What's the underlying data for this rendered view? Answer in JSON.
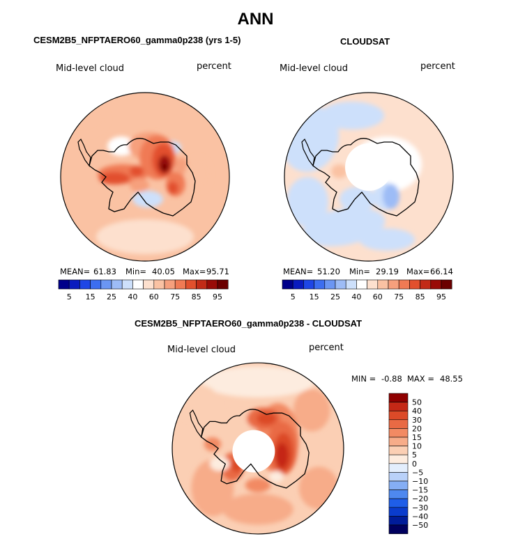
{
  "title": "ANN",
  "colors": {
    "abs_scale": [
      "#00008a",
      "#0a1bbf",
      "#1e46e6",
      "#3c6ef0",
      "#6b96f3",
      "#9dbcf6",
      "#cde0fb",
      "#ffffff",
      "#fde0ce",
      "#fac2a3",
      "#f6a07d",
      "#f07a54",
      "#e2502d",
      "#c22b17",
      "#990b07",
      "#6b0000"
    ],
    "diff_scale": [
      "#00005e",
      "#001c99",
      "#0a3ccd",
      "#1f5ee8",
      "#4e88ef",
      "#85aef4",
      "#b9d1f9",
      "#e3eefd",
      "#fdecdf",
      "#fbcfb4",
      "#f7ac89",
      "#f28a63",
      "#e96a44",
      "#dc4a28",
      "#c52816",
      "#8f0000"
    ]
  },
  "chart_data": [
    {
      "type": "heatmap",
      "projection": "south-polar-stereographic",
      "panel_title": "CESM2B5_NFPTAERO60_gamma0p238 (yrs 1-5)",
      "variable": "Mid-level cloud",
      "units": "percent",
      "stats": {
        "mean_label": "MEAN=",
        "mean": "61.83",
        "min_label": "Min=",
        "min": "40.05",
        "max_label": "Max=",
        "max": "95.71"
      },
      "colorbar": {
        "orientation": "horizontal",
        "levels": [
          5,
          10,
          15,
          20,
          25,
          30,
          40,
          50,
          60,
          65,
          70,
          75,
          80,
          85,
          90,
          95
        ],
        "labels": [
          "5",
          "15",
          "25",
          "40",
          "60",
          "75",
          "85",
          "95"
        ]
      }
    },
    {
      "type": "heatmap",
      "projection": "south-polar-stereographic",
      "panel_title": "CLOUDSAT",
      "variable": "Mid-level cloud",
      "units": "percent",
      "stats": {
        "mean_label": "MEAN=",
        "mean": "51.20",
        "min_label": "Min=",
        "min": "29.19",
        "max_label": "Max=",
        "max": "66.14"
      },
      "colorbar": {
        "orientation": "horizontal",
        "levels": [
          5,
          10,
          15,
          20,
          25,
          30,
          40,
          50,
          60,
          65,
          70,
          75,
          80,
          85,
          90,
          95
        ],
        "labels": [
          "5",
          "15",
          "25",
          "40",
          "60",
          "75",
          "85",
          "95"
        ]
      }
    },
    {
      "type": "heatmap",
      "projection": "south-polar-stereographic",
      "panel_title": "CESM2B5_NFPTAERO60_gamma0p238 - CLOUDSAT",
      "variable": "Mid-level cloud",
      "units": "percent",
      "stats": {
        "min_label": "MIN =",
        "min": "-0.88",
        "max_label": "MAX =",
        "max": "48.55"
      },
      "colorbar": {
        "orientation": "vertical",
        "labels": [
          "50",
          "40",
          "30",
          "20",
          "15",
          "10",
          "5",
          "0",
          "−5",
          "−10",
          "−15",
          "−20",
          "−30",
          "−40",
          "−50"
        ]
      }
    }
  ]
}
